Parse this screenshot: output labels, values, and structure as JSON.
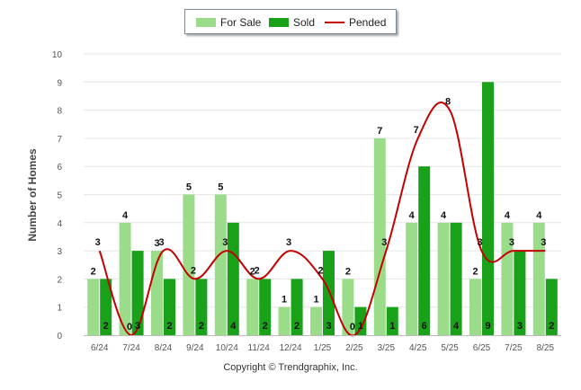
{
  "legend": {
    "for_sale": "For Sale",
    "sold": "Sold",
    "pended": "Pended"
  },
  "colors": {
    "for_sale": "#9bdc8a",
    "sold": "#19a119",
    "pended": "#c40000"
  },
  "credit": "Copyright © Trendgraphix, Inc.",
  "chart_data": {
    "type": "bar",
    "title": "",
    "xlabel": "",
    "ylabel": "Number of Homes",
    "ylim": [
      0,
      10
    ],
    "yticks": [
      0,
      1,
      2,
      3,
      4,
      5,
      6,
      7,
      8,
      9,
      10
    ],
    "grid": true,
    "legend_position": "top-center",
    "categories": [
      "6/24",
      "7/24",
      "8/24",
      "9/24",
      "10/24",
      "11/24",
      "12/24",
      "1/25",
      "2/25",
      "3/25",
      "4/25",
      "5/25",
      "6/25",
      "7/25",
      "8/25"
    ],
    "series": [
      {
        "name": "For Sale",
        "type": "bar",
        "values": [
          2,
          4,
          3,
          5,
          5,
          2,
          1,
          1,
          2,
          7,
          4,
          4,
          2,
          4,
          4
        ]
      },
      {
        "name": "Sold",
        "type": "bar",
        "values": [
          2,
          3,
          2,
          2,
          4,
          2,
          2,
          3,
          1,
          1,
          6,
          4,
          9,
          3,
          2
        ]
      },
      {
        "name": "Pended",
        "type": "line",
        "values": [
          3,
          0,
          3,
          2,
          3,
          2,
          3,
          2,
          0,
          3,
          7,
          8,
          3,
          3,
          3
        ]
      }
    ]
  }
}
